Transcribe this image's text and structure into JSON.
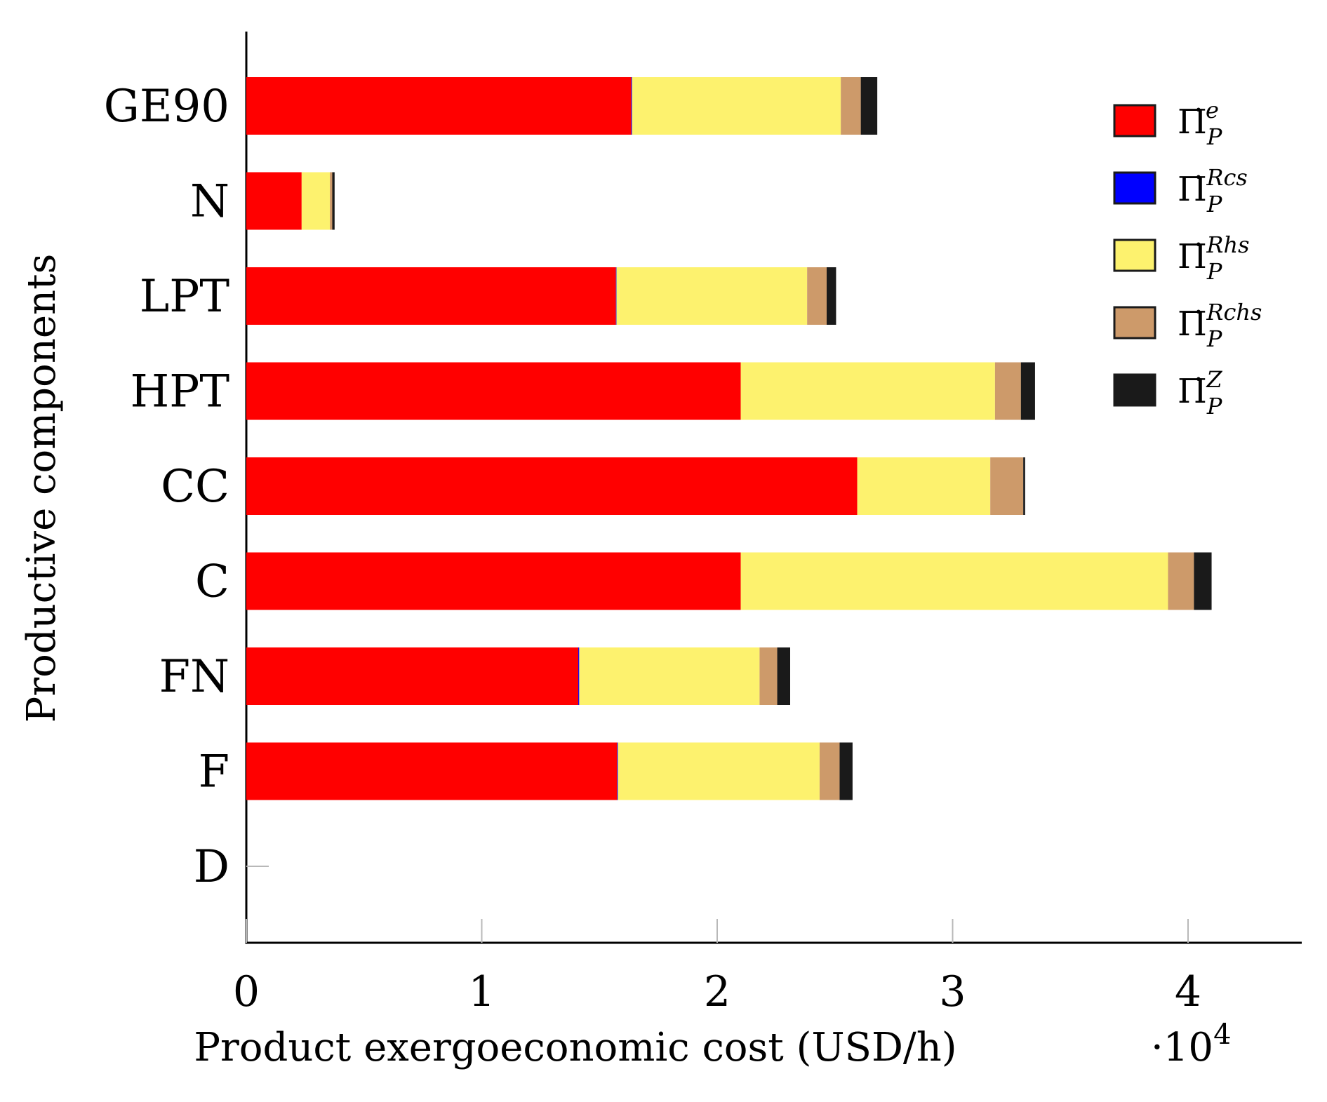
{
  "chart_data": {
    "type": "bar",
    "orientation": "horizontal",
    "stacked": true,
    "title": "",
    "xlabel": "Product exergoeconomic cost (USD/h)",
    "x_scale_label": "·10",
    "x_scale_exp": "4",
    "ylabel": "Productive components",
    "xlim": [
      0,
      4.5
    ],
    "xticks": [
      0,
      1,
      2,
      3,
      4
    ],
    "grid": false,
    "legend_position": "top-right",
    "categories": [
      "GE90",
      "N",
      "LPT",
      "HPT",
      "CC",
      "C",
      "FN",
      "F",
      "D"
    ],
    "series": [
      {
        "name": "Π̇_P^e",
        "base": "Π̇",
        "sup": "e",
        "sub": "P",
        "color": "#ff0000",
        "values": [
          1.635,
          0.235,
          1.57,
          2.1,
          2.595,
          2.1,
          1.41,
          1.575,
          0.0
        ]
      },
      {
        "name": "Π̇_P^Rcs",
        "base": "Π̇",
        "sup": "Rcs",
        "sub": "P",
        "color": "#0000ff",
        "values": [
          0.003,
          0.0,
          0.002,
          0.0,
          0.0,
          0.0,
          0.004,
          0.003,
          0.0
        ]
      },
      {
        "name": "Π̇_P^Rhs",
        "base": "Π̇",
        "sup": "Rhs",
        "sub": "P",
        "color": "#fdf26e",
        "values": [
          0.887,
          0.12,
          0.81,
          1.08,
          0.565,
          1.815,
          0.766,
          0.857,
          0.0
        ]
      },
      {
        "name": "Π̇_P^Rchs",
        "base": "Π̇",
        "sup": "Rchs",
        "sub": "P",
        "color": "#cd9a6a",
        "values": [
          0.085,
          0.01,
          0.083,
          0.11,
          0.14,
          0.11,
          0.075,
          0.085,
          0.0
        ]
      },
      {
        "name": "Π̇_P^Z",
        "base": "Π̇",
        "sup": "Z",
        "sub": "P",
        "color": "#1a1a1a",
        "values": [
          0.07,
          0.01,
          0.04,
          0.06,
          0.008,
          0.075,
          0.055,
          0.055,
          0.0
        ]
      }
    ]
  }
}
